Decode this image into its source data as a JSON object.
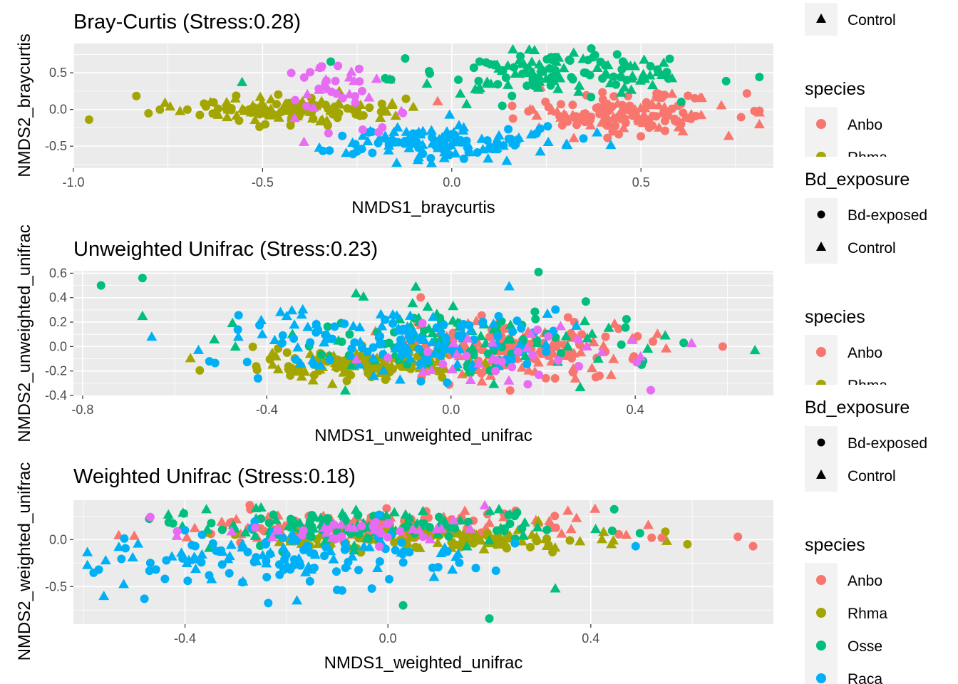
{
  "chart_data": [
    {
      "type": "scatter",
      "title": "Bray-Curtis (Stress:0.28)",
      "xlabel": "NMDS1_braycurtis",
      "ylabel": "NMDS2_braycurtis",
      "xlim": [
        -1.0,
        0.85
      ],
      "ylim": [
        -0.8,
        0.9
      ],
      "x_ticks": [
        -1.0,
        -0.5,
        0.0,
        0.5
      ],
      "x_tick_labels": [
        "-1.0",
        "-0.5",
        "0.0",
        "0.5"
      ],
      "y_ticks": [
        -0.5,
        0.0,
        0.5
      ],
      "y_tick_labels": [
        "-0.5",
        "0.0",
        "0.5"
      ],
      "grid": true,
      "series": [
        {
          "name": "Anbo",
          "color": "#F8766D",
          "cluster": {
            "cx": 0.45,
            "cy": -0.05,
            "sx": 0.14,
            "sy": 0.14,
            "n": 150
          }
        },
        {
          "name": "Rhma",
          "color": "#A3A500",
          "cluster": {
            "cx": -0.45,
            "cy": 0.0,
            "sx": 0.15,
            "sy": 0.09,
            "n": 130
          }
        },
        {
          "name": "Osse",
          "color": "#00BF7D",
          "cluster": {
            "cx": 0.25,
            "cy": 0.5,
            "sx": 0.2,
            "sy": 0.15,
            "n": 140
          }
        },
        {
          "name": "Raca",
          "color": "#00B0F6",
          "cluster": {
            "cx": -0.05,
            "cy": -0.45,
            "sx": 0.17,
            "sy": 0.12,
            "n": 140
          }
        },
        {
          "name": "Raca (magenta)",
          "color": "#E76BF3",
          "cluster": {
            "cx": -0.3,
            "cy": 0.3,
            "sx": 0.08,
            "sy": 0.22,
            "n": 40
          }
        }
      ],
      "legend": {
        "shape_title": "Bd_exposure",
        "shape_entries": [
          "Control"
        ],
        "color_title": "species",
        "color_entries": [
          "Anbo",
          "Rhma"
        ]
      }
    },
    {
      "type": "scatter",
      "title": "Unweighted Unifrac (Stress:0.23)",
      "xlabel": "NMDS1_unweighted_unifrac",
      "ylabel": "NMDS2_unweighted_unifrac",
      "xlim": [
        -0.82,
        0.7
      ],
      "ylim": [
        -0.4,
        0.62
      ],
      "x_ticks": [
        -0.8,
        -0.4,
        0.0,
        0.4
      ],
      "x_tick_labels": [
        "-0.8",
        "-0.4",
        "0.0",
        "0.4"
      ],
      "y_ticks": [
        -0.4,
        -0.2,
        0.0,
        0.2,
        0.4,
        0.6
      ],
      "y_tick_labels": [
        "-0.4",
        "-0.2",
        "0.0",
        "0.2",
        "0.4",
        "0.6"
      ],
      "grid": true,
      "series": [
        {
          "name": "Anbo",
          "color": "#F8766D",
          "cluster": {
            "cx": 0.15,
            "cy": -0.02,
            "sx": 0.14,
            "sy": 0.12,
            "n": 160
          }
        },
        {
          "name": "Rhma",
          "color": "#A3A500",
          "cluster": {
            "cx": -0.2,
            "cy": -0.15,
            "sx": 0.11,
            "sy": 0.06,
            "n": 130
          }
        },
        {
          "name": "Osse",
          "color": "#00BF7D",
          "cluster": {
            "cx": 0.05,
            "cy": 0.05,
            "sx": 0.22,
            "sy": 0.16,
            "n": 120
          }
        },
        {
          "name": "Raca",
          "color": "#00B0F6",
          "cluster": {
            "cx": -0.1,
            "cy": 0.05,
            "sx": 0.17,
            "sy": 0.13,
            "n": 150
          }
        },
        {
          "name": "Raca (magenta)",
          "color": "#E76BF3",
          "cluster": {
            "cx": 0.1,
            "cy": -0.1,
            "sx": 0.2,
            "sy": 0.12,
            "n": 40
          }
        }
      ],
      "extra_points": [
        {
          "x": -0.76,
          "y": 0.5,
          "color": "#00BF7D",
          "shape": "circle"
        },
        {
          "x": -0.67,
          "y": 0.56,
          "color": "#00BF7D",
          "shape": "circle"
        },
        {
          "x": -0.67,
          "y": 0.25,
          "color": "#00BF7D",
          "shape": "triangle"
        },
        {
          "x": -0.65,
          "y": 0.08,
          "color": "#00B0F6",
          "shape": "triangle"
        },
        {
          "x": 0.59,
          "y": 0.0,
          "color": "#F8766D",
          "shape": "circle"
        },
        {
          "x": 0.66,
          "y": -0.03,
          "color": "#00BF7D",
          "shape": "triangle"
        },
        {
          "x": 0.19,
          "y": 0.61,
          "color": "#00BF7D",
          "shape": "circle"
        }
      ],
      "legend": {
        "shape_title": "Bd_exposure",
        "shape_entries": [
          "Bd-exposed",
          "Control"
        ],
        "color_title": "species",
        "color_entries": [
          "Anbo",
          "Rhma"
        ]
      }
    },
    {
      "type": "scatter",
      "title": "Weighted Unifrac (Stress:0.18)",
      "xlabel": "NMDS1_weighted_unifrac",
      "ylabel": "NMDS2_weighted_unifrac",
      "xlim": [
        -0.62,
        0.76
      ],
      "ylim": [
        -0.9,
        0.42
      ],
      "x_ticks": [
        -0.4,
        0.0,
        0.4
      ],
      "x_tick_labels": [
        "-0.4",
        "0.0",
        "0.4"
      ],
      "y_ticks": [
        -0.5,
        0.0
      ],
      "y_tick_labels": [
        "-0.5",
        "0.0"
      ],
      "grid": true,
      "series": [
        {
          "name": "Anbo",
          "color": "#F8766D",
          "cluster": {
            "cx": -0.02,
            "cy": 0.15,
            "sx": 0.17,
            "sy": 0.09,
            "n": 140
          }
        },
        {
          "name": "Rhma",
          "color": "#A3A500",
          "cluster": {
            "cx": 0.12,
            "cy": 0.0,
            "sx": 0.18,
            "sy": 0.07,
            "n": 130
          }
        },
        {
          "name": "Osse",
          "color": "#00BF7D",
          "cluster": {
            "cx": -0.05,
            "cy": 0.15,
            "sx": 0.2,
            "sy": 0.1,
            "n": 140
          }
        },
        {
          "name": "Raca",
          "color": "#00B0F6",
          "cluster": {
            "cx": -0.2,
            "cy": -0.2,
            "sx": 0.18,
            "sy": 0.16,
            "n": 140
          }
        },
        {
          "name": "Raca (magenta)",
          "color": "#E76BF3",
          "cluster": {
            "cx": -0.05,
            "cy": 0.1,
            "sx": 0.2,
            "sy": 0.08,
            "n": 40
          }
        }
      ],
      "extra_points": [
        {
          "x": -0.5,
          "y": 0.04,
          "color": "#F8766D",
          "shape": "triangle"
        },
        {
          "x": -0.57,
          "y": -0.32,
          "color": "#00B0F6",
          "shape": "circle"
        },
        {
          "x": -0.56,
          "y": -0.6,
          "color": "#00B0F6",
          "shape": "triangle"
        },
        {
          "x": -0.48,
          "y": -0.63,
          "color": "#00B0F6",
          "shape": "circle"
        },
        {
          "x": 0.03,
          "y": -0.7,
          "color": "#00BF7D",
          "shape": "circle"
        },
        {
          "x": 0.2,
          "y": -0.84,
          "color": "#00BF7D",
          "shape": "circle"
        },
        {
          "x": 0.33,
          "y": -0.52,
          "color": "#00BF7D",
          "shape": "triangle"
        },
        {
          "x": 0.69,
          "y": 0.03,
          "color": "#F8766D",
          "shape": "circle"
        },
        {
          "x": 0.72,
          "y": -0.07,
          "color": "#F8766D",
          "shape": "circle"
        },
        {
          "x": 0.52,
          "y": 0.02,
          "color": "#F8766D",
          "shape": "circle"
        },
        {
          "x": 0.54,
          "y": 0.02,
          "color": "#F8766D",
          "shape": "circle"
        },
        {
          "x": 0.47,
          "y": 0.05,
          "color": "#F8766D",
          "shape": "triangle"
        }
      ],
      "legend": {
        "color_title": "species",
        "color_entries": [
          "Anbo",
          "Rhma",
          "Osse",
          "Raca"
        ]
      }
    }
  ],
  "labels": {
    "circle_label": "Bd-exposed",
    "triangle_label": "Control"
  }
}
